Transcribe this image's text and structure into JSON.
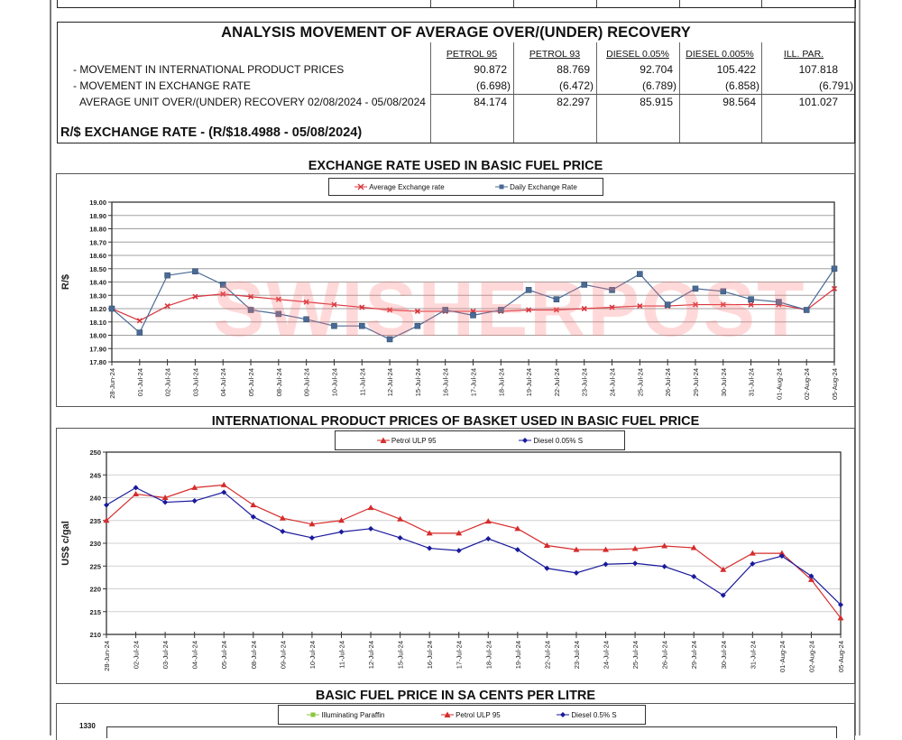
{
  "analysis": {
    "title": "ANALYSIS MOVEMENT OF AVERAGE OVER/(UNDER) RECOVERY",
    "columns": [
      "PETROL 95",
      "PETROL 93",
      "DIESEL 0.05%",
      "DIESEL 0.005%",
      "ILL. PAR."
    ],
    "rows": [
      {
        "label": "- MOVEMENT IN INTERNATIONAL PRODUCT PRICES",
        "values": [
          "90.872",
          "88.769",
          "92.704",
          "105.422",
          "107.818"
        ]
      },
      {
        "label": "- MOVEMENT IN EXCHANGE RATE",
        "values": [
          "(6.698)",
          "(6.472)",
          "(6.789)",
          "(6.858)",
          "(6.791)"
        ]
      },
      {
        "label": "AVERAGE UNIT OVER/(UNDER) RECOVERY 02/08/2024 - 05/08/2024",
        "values": [
          "84.174",
          "82.297",
          "85.915",
          "98.564",
          "101.027"
        ]
      }
    ],
    "exchange_rate_title": "R/$ EXCHANGE RATE - (R/$18.4988 - 05/08/2024)"
  },
  "watermark": "SWISHERPOST",
  "chart_data": [
    {
      "type": "line",
      "title": "EXCHANGE RATE USED IN BASIC FUEL PRICE",
      "xlabel": "",
      "ylabel": "R/$",
      "ylim": [
        17.8,
        19.0
      ],
      "yticks": [
        "17.80",
        "17.90",
        "18.00",
        "18.10",
        "18.20",
        "18.30",
        "18.40",
        "18.50",
        "18.60",
        "18.70",
        "18.80",
        "18.90",
        "19.00"
      ],
      "grid": true,
      "legend": "top-center",
      "x": [
        "28-Jun-24",
        "01-Jul-24",
        "02-Jul-24",
        "03-Jul-24",
        "04-Jul-24",
        "05-Jul-24",
        "08-Jul-24",
        "09-Jul-24",
        "10-Jul-24",
        "11-Jul-24",
        "12-Jul-24",
        "15-Jul-24",
        "16-Jul-24",
        "17-Jul-24",
        "18-Jul-24",
        "19-Jul-24",
        "22-Jul-24",
        "23-Jul-24",
        "24-Jul-24",
        "25-Jul-24",
        "26-Jul-24",
        "29-Jul-24",
        "30-Jul-24",
        "31-Jul-24",
        "01-Aug-24",
        "02-Aug-24",
        "05-Aug-24"
      ],
      "series": [
        {
          "name": "Average Exchange rate",
          "color": "#d9363e",
          "marker": "x",
          "values": [
            18.2,
            18.11,
            18.22,
            18.29,
            18.31,
            18.29,
            18.27,
            18.25,
            18.23,
            18.21,
            18.19,
            18.18,
            18.18,
            18.18,
            18.18,
            18.19,
            18.19,
            18.2,
            18.21,
            18.22,
            18.22,
            18.23,
            18.23,
            18.23,
            18.23,
            18.19,
            18.35
          ]
        },
        {
          "name": "Daily Exchange Rate",
          "color": "#4a6a96",
          "marker": "square",
          "values": [
            18.2,
            18.02,
            18.45,
            18.48,
            18.38,
            18.19,
            18.16,
            18.12,
            18.07,
            18.07,
            17.97,
            18.07,
            18.19,
            18.15,
            18.19,
            18.34,
            18.27,
            18.38,
            18.34,
            18.46,
            18.23,
            18.35,
            18.33,
            18.27,
            18.25,
            18.19,
            18.5
          ]
        }
      ]
    },
    {
      "type": "line",
      "title": "INTERNATIONAL PRODUCT PRICES OF BASKET USED IN BASIC FUEL PRICE",
      "xlabel": "",
      "ylabel": "US$ c/gal",
      "ylim": [
        210,
        250
      ],
      "yticks": [
        "210",
        "215",
        "220",
        "225",
        "230",
        "235",
        "240",
        "245",
        "250"
      ],
      "grid": true,
      "legend": "top-center",
      "x": [
        "28-Jun-24",
        "02-Jul-24",
        "03-Jul-24",
        "04-Jul-24",
        "05-Jul-24",
        "08-Jul-24",
        "09-Jul-24",
        "10-Jul-24",
        "11-Jul-24",
        "12-Jul-24",
        "15-Jul-24",
        "16-Jul-24",
        "17-Jul-24",
        "18-Jul-24",
        "19-Jul-24",
        "22-Jul-24",
        "23-Jul-24",
        "24-Jul-24",
        "25-Jul-24",
        "26-Jul-24",
        "29-Jul-24",
        "30-Jul-24",
        "31-Jul-24",
        "01-Aug-24",
        "02-Aug-24",
        "05-Aug-24"
      ],
      "series": [
        {
          "name": "Petrol ULP 95",
          "color": "#d62b2b",
          "marker": "triangle",
          "values": [
            235.0,
            240.8,
            240.0,
            242.2,
            242.8,
            238.4,
            235.5,
            234.2,
            235.0,
            237.8,
            235.3,
            232.2,
            232.2,
            234.8,
            233.2,
            229.5,
            228.6,
            228.6,
            228.8,
            229.4,
            229.0,
            224.2,
            227.8,
            227.8,
            222.0,
            213.6
          ]
        },
        {
          "name": "Diesel 0.05% S",
          "color": "#1a1a9c",
          "marker": "diamond",
          "values": [
            238.4,
            242.2,
            239.0,
            239.3,
            241.2,
            235.8,
            232.6,
            231.2,
            232.5,
            233.2,
            231.2,
            228.9,
            228.4,
            231.0,
            228.6,
            224.5,
            223.5,
            225.4,
            225.6,
            224.9,
            222.7,
            218.6,
            225.5,
            227.2,
            222.8,
            216.5
          ]
        }
      ]
    },
    {
      "type": "line",
      "title": "BASIC FUEL PRICE IN SA CENTS PER LITRE",
      "ylim_top_visible": "1330",
      "legend": "top-center",
      "series": [
        {
          "name": "Illuminating Paraffin",
          "color": "#8cc63f",
          "marker": "square"
        },
        {
          "name": "Petrol ULP 95",
          "color": "#d62b2b",
          "marker": "triangle"
        },
        {
          "name": "Diesel 0.5% S",
          "color": "#1a1a9c",
          "marker": "diamond"
        }
      ]
    }
  ]
}
